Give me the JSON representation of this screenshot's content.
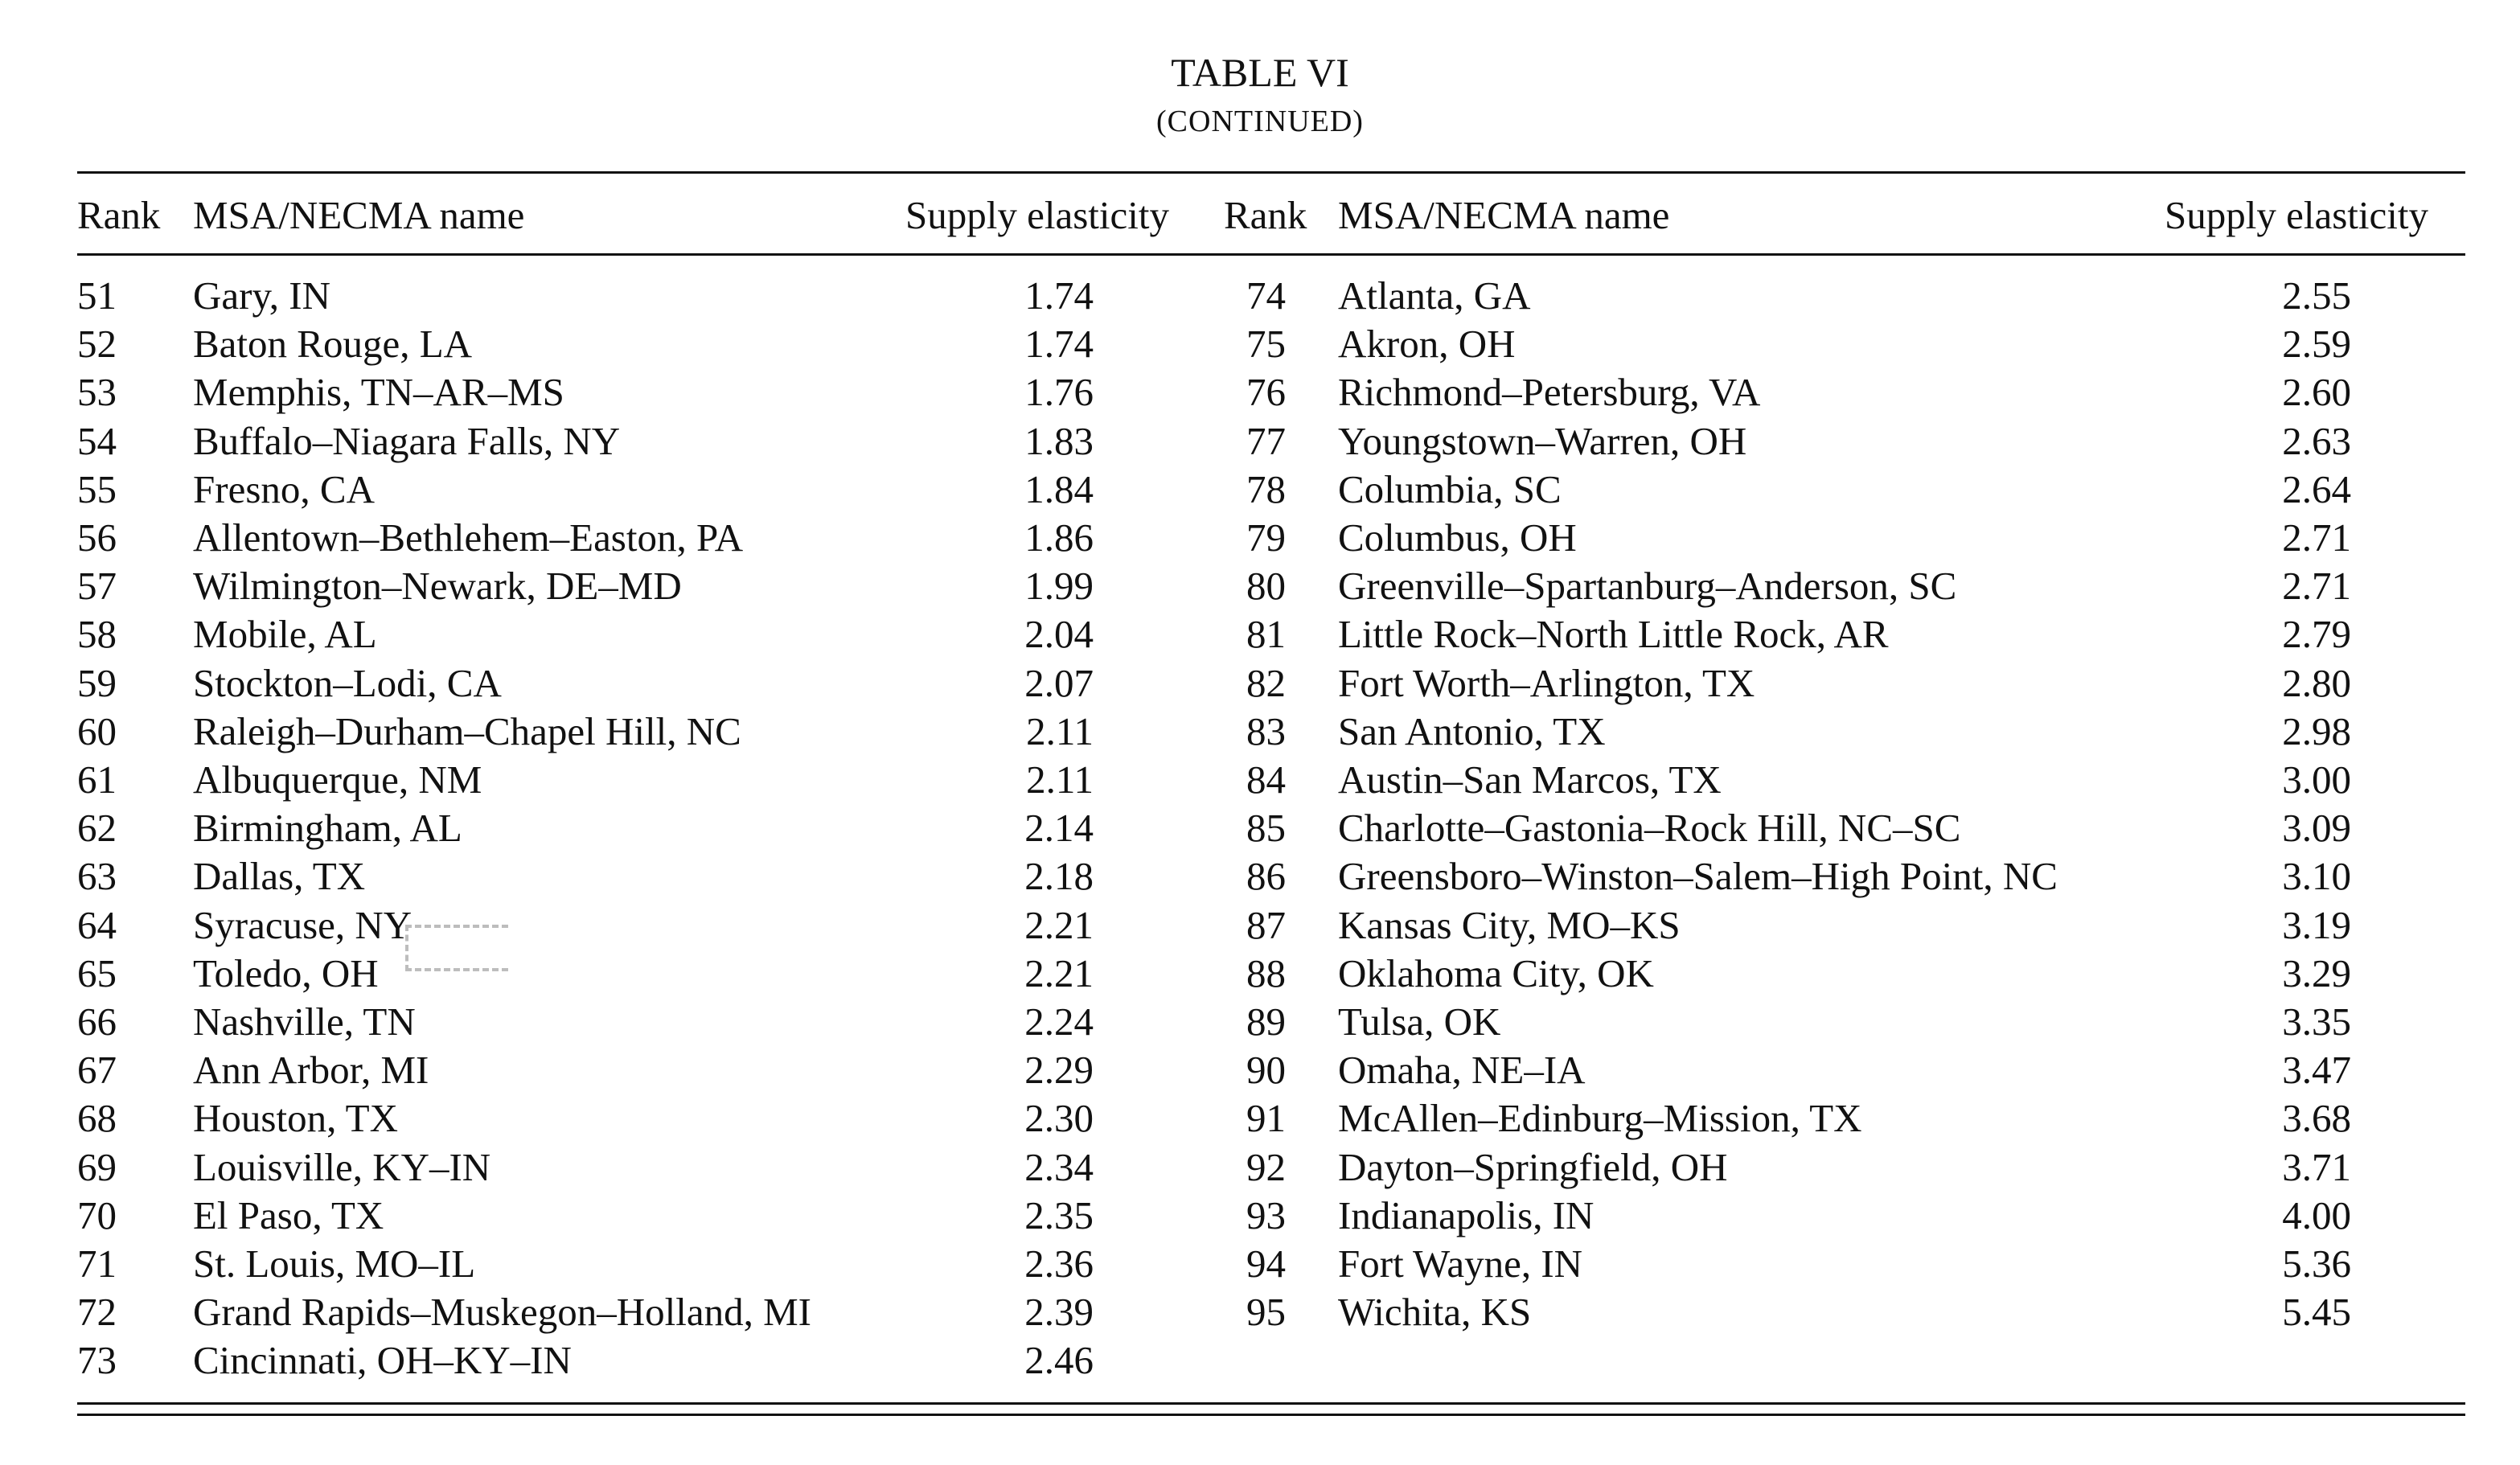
{
  "title": "TABLE VI",
  "subtitle": "(CONTINUED)",
  "headers": {
    "rank": "Rank",
    "name": "MSA/NECMA name",
    "elasticity": "Supply elasticity"
  },
  "left_rows": [
    {
      "rank": "51",
      "name": "Gary, IN",
      "elasticity": "1.74"
    },
    {
      "rank": "52",
      "name": "Baton Rouge, LA",
      "elasticity": "1.74"
    },
    {
      "rank": "53",
      "name": "Memphis, TN–AR–MS",
      "elasticity": "1.76"
    },
    {
      "rank": "54",
      "name": "Buffalo–Niagara Falls, NY",
      "elasticity": "1.83"
    },
    {
      "rank": "55",
      "name": "Fresno, CA",
      "elasticity": "1.84"
    },
    {
      "rank": "56",
      "name": "Allentown–Bethlehem–Easton, PA",
      "elasticity": "1.86"
    },
    {
      "rank": "57",
      "name": "Wilmington–Newark, DE–MD",
      "elasticity": "1.99"
    },
    {
      "rank": "58",
      "name": "Mobile, AL",
      "elasticity": "2.04"
    },
    {
      "rank": "59",
      "name": "Stockton–Lodi, CA",
      "elasticity": "2.07"
    },
    {
      "rank": "60",
      "name": "Raleigh–Durham–Chapel Hill, NC",
      "elasticity": "2.11"
    },
    {
      "rank": "61",
      "name": "Albuquerque, NM",
      "elasticity": "2.11"
    },
    {
      "rank": "62",
      "name": "Birmingham, AL",
      "elasticity": "2.14"
    },
    {
      "rank": "63",
      "name": "Dallas, TX",
      "elasticity": "2.18"
    },
    {
      "rank": "64",
      "name": "Syracuse, NY",
      "elasticity": "2.21"
    },
    {
      "rank": "65",
      "name": "Toledo, OH",
      "elasticity": "2.21"
    },
    {
      "rank": "66",
      "name": "Nashville, TN",
      "elasticity": "2.24"
    },
    {
      "rank": "67",
      "name": "Ann Arbor, MI",
      "elasticity": "2.29"
    },
    {
      "rank": "68",
      "name": "Houston, TX",
      "elasticity": "2.30"
    },
    {
      "rank": "69",
      "name": "Louisville, KY–IN",
      "elasticity": "2.34"
    },
    {
      "rank": "70",
      "name": "El Paso, TX",
      "elasticity": "2.35"
    },
    {
      "rank": "71",
      "name": "St. Louis, MO–IL",
      "elasticity": "2.36"
    },
    {
      "rank": "72",
      "name": "Grand Rapids–Muskegon–Holland, MI",
      "elasticity": "2.39"
    },
    {
      "rank": "73",
      "name": "Cincinnati, OH–KY–IN",
      "elasticity": "2.46"
    }
  ],
  "right_rows": [
    {
      "rank": "74",
      "name": "Atlanta, GA",
      "elasticity": "2.55"
    },
    {
      "rank": "75",
      "name": "Akron, OH",
      "elasticity": "2.59"
    },
    {
      "rank": "76",
      "name": "Richmond–Petersburg, VA",
      "elasticity": "2.60"
    },
    {
      "rank": "77",
      "name": "Youngstown–Warren, OH",
      "elasticity": "2.63"
    },
    {
      "rank": "78",
      "name": "Columbia, SC",
      "elasticity": "2.64"
    },
    {
      "rank": "79",
      "name": "Columbus, OH",
      "elasticity": "2.71"
    },
    {
      "rank": "80",
      "name": "Greenville–Spartanburg–Anderson, SC",
      "elasticity": "2.71"
    },
    {
      "rank": "81",
      "name": "Little Rock–North Little Rock, AR",
      "elasticity": "2.79"
    },
    {
      "rank": "82",
      "name": "Fort Worth–Arlington, TX",
      "elasticity": "2.80"
    },
    {
      "rank": "83",
      "name": "San Antonio, TX",
      "elasticity": "2.98"
    },
    {
      "rank": "84",
      "name": "Austin–San Marcos, TX",
      "elasticity": "3.00"
    },
    {
      "rank": "85",
      "name": "Charlotte–Gastonia–Rock Hill, NC–SC",
      "elasticity": "3.09"
    },
    {
      "rank": "86",
      "name": "Greensboro–Winston–Salem–High Point, NC",
      "elasticity": "3.10"
    },
    {
      "rank": "87",
      "name": "Kansas City, MO–KS",
      "elasticity": "3.19"
    },
    {
      "rank": "88",
      "name": "Oklahoma City, OK",
      "elasticity": "3.29"
    },
    {
      "rank": "89",
      "name": "Tulsa, OK",
      "elasticity": "3.35"
    },
    {
      "rank": "90",
      "name": "Omaha, NE–IA",
      "elasticity": "3.47"
    },
    {
      "rank": "91",
      "name": "McAllen–Edinburg–Mission, TX",
      "elasticity": "3.68"
    },
    {
      "rank": "92",
      "name": "Dayton–Springfield, OH",
      "elasticity": "3.71"
    },
    {
      "rank": "93",
      "name": "Indianapolis, IN",
      "elasticity": "4.00"
    },
    {
      "rank": "94",
      "name": "Fort Wayne, IN",
      "elasticity": "5.36"
    },
    {
      "rank": "95",
      "name": "Wichita, KS",
      "elasticity": "5.45"
    }
  ]
}
